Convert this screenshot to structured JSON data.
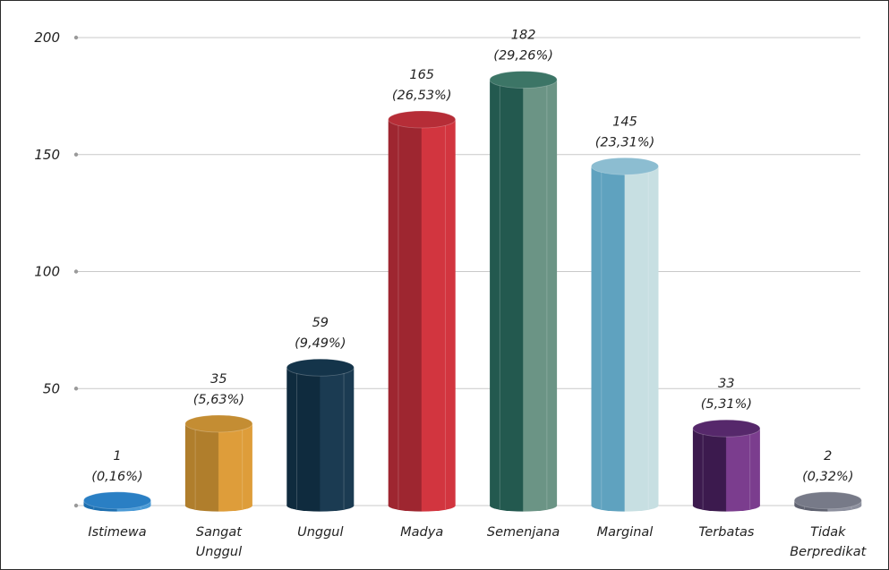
{
  "chart_data": {
    "type": "bar",
    "categories": [
      "Istimewa",
      "Sangat Unggul",
      "Unggul",
      "Madya",
      "Semenjana",
      "Marginal",
      "Terbatas",
      "Tidak Berpredikat"
    ],
    "category_lines": [
      [
        "Istimewa"
      ],
      [
        "Sangat",
        "Unggul"
      ],
      [
        "Unggul"
      ],
      [
        "Madya"
      ],
      [
        "Semenjana"
      ],
      [
        "Marginal"
      ],
      [
        "Terbatas"
      ],
      [
        "Tidak",
        "Berpredikat"
      ]
    ],
    "values": [
      1,
      35,
      59,
      165,
      182,
      145,
      33,
      2
    ],
    "percent_labels": [
      "(0,16%)",
      "(5,63%)",
      "(9,49%)",
      "(26,53%)",
      "(29,26%)",
      "(23,31%)",
      "(5,31%)",
      "(0,32%)"
    ],
    "colors": [
      {
        "dark": "#1d6fb0",
        "light": "#4a9ad6",
        "top": "#2a7fc4"
      },
      {
        "dark": "#b07e2c",
        "light": "#de9d3a",
        "top": "#c48d33"
      },
      {
        "dark": "#0f2b3e",
        "light": "#1b3b52",
        "top": "#14344a"
      },
      {
        "dark": "#9e2630",
        "light": "#d2353f",
        "top": "#b62d37"
      },
      {
        "dark": "#23594f",
        "light": "#6b9485",
        "top": "#3c7566"
      },
      {
        "dark": "#5fa2bf",
        "light": "#c7dfe2",
        "top": "#8cbdd1"
      },
      {
        "dark": "#3c1a4e",
        "light": "#7b3d8e",
        "top": "#56286b"
      },
      {
        "dark": "#5f6270",
        "light": "#8d909e",
        "top": "#777a88"
      }
    ],
    "yticks": [
      0,
      50,
      100,
      150,
      200
    ],
    "ytick_labels": [
      "",
      "50",
      "100",
      "150",
      "200"
    ],
    "ylim": [
      0,
      200
    ],
    "grid": true,
    "title": "",
    "xlabel": "",
    "ylabel": ""
  }
}
